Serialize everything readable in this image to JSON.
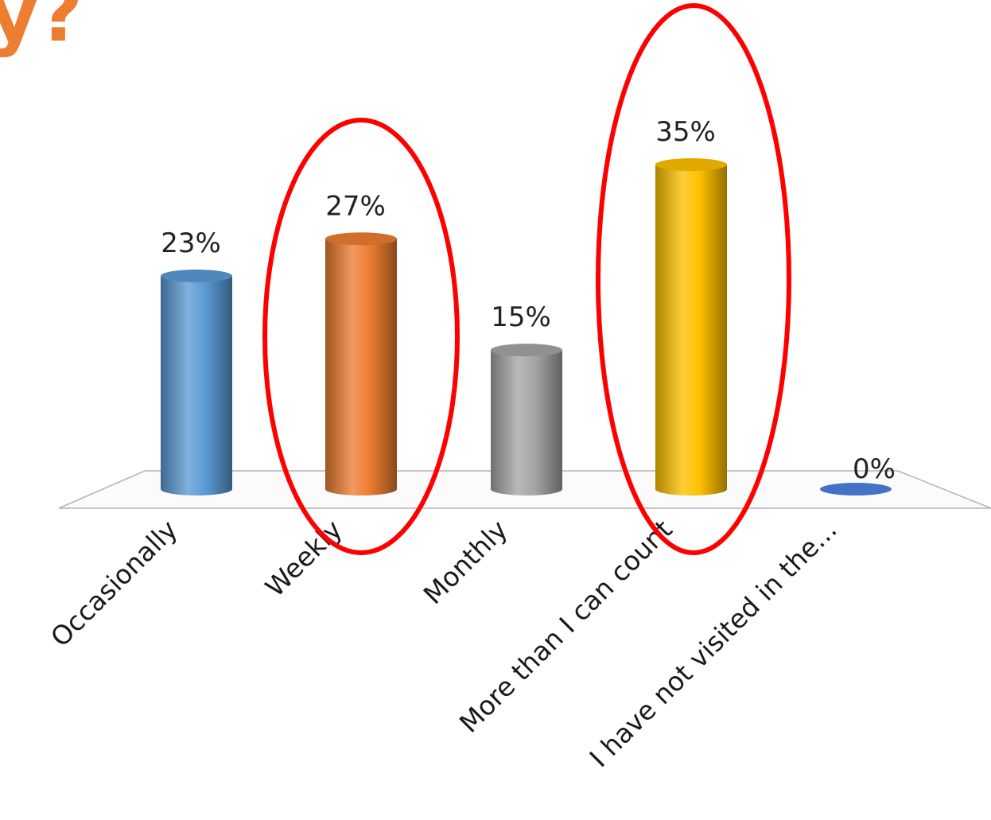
{
  "page": {
    "title_fragment": "y?"
  },
  "chart_data": {
    "type": "bar",
    "style": "3d-cylinder",
    "categories": [
      "Occasionally",
      "Weekly",
      "Monthly",
      "More than I can count",
      "I have not visited in the..."
    ],
    "values": [
      23,
      27,
      15,
      35,
      0
    ],
    "value_labels": [
      "23%",
      "27%",
      "15%",
      "35%",
      "0%"
    ],
    "unit": "%",
    "ylim": [
      0,
      35
    ],
    "grid": false,
    "legend": "none",
    "colors": [
      "#5b9bd5",
      "#ed7d31",
      "#a5a5a5",
      "#ffc000",
      "#4472c4"
    ],
    "highlight": {
      "shape": "ellipse",
      "color": "#ff0000",
      "categories": [
        "Weekly",
        "More than I can count"
      ]
    }
  }
}
